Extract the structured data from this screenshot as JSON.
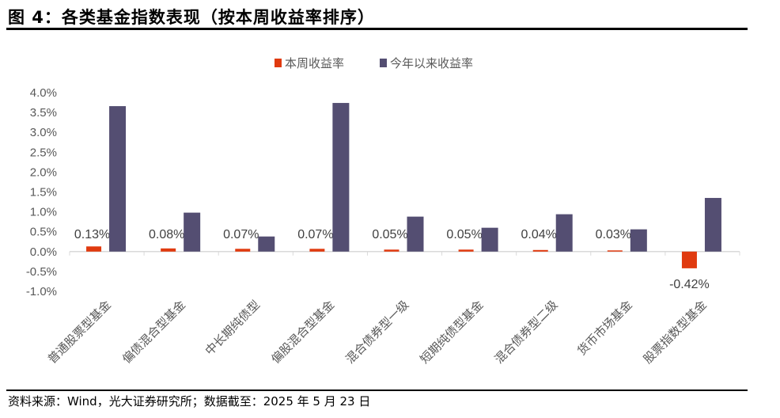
{
  "title": "图 4：各类基金指数表现（按本周收益率排序）",
  "source": "资料来源：Wind，光大证券研究所；数据截至：2025 年 5 月 23 日",
  "chart_data": {
    "type": "bar",
    "title": "",
    "xlabel": "",
    "ylabel": "",
    "ylim": [
      -1.0,
      4.0
    ],
    "yticks": [
      "4.0%",
      "3.5%",
      "3.0%",
      "2.5%",
      "2.0%",
      "1.5%",
      "1.0%",
      "0.5%",
      "0.0%",
      "-0.5%",
      "-1.0%"
    ],
    "legend_position": "top",
    "grid": false,
    "categories": [
      "普通股票型基金",
      "偏债混合型基金",
      "中长期纯债型",
      "偏股混合型基金",
      "混合债券型一级",
      "短期纯债型基金",
      "混合债券型二级",
      "货币市场基金",
      "股票指数型基金"
    ],
    "series": [
      {
        "name": "本周收益率",
        "color": "#E03A0F",
        "values": [
          0.13,
          0.08,
          0.07,
          0.07,
          0.05,
          0.05,
          0.04,
          0.03,
          -0.42
        ],
        "labels": [
          "0.13%",
          "0.08%",
          "0.07%",
          "0.07%",
          "0.05%",
          "0.05%",
          "0.04%",
          "0.03%",
          "-0.42%"
        ]
      },
      {
        "name": "今年以来收益率",
        "color": "#544E72",
        "values": [
          3.66,
          0.98,
          0.38,
          3.74,
          0.88,
          0.6,
          0.94,
          0.56,
          1.35
        ]
      }
    ]
  }
}
